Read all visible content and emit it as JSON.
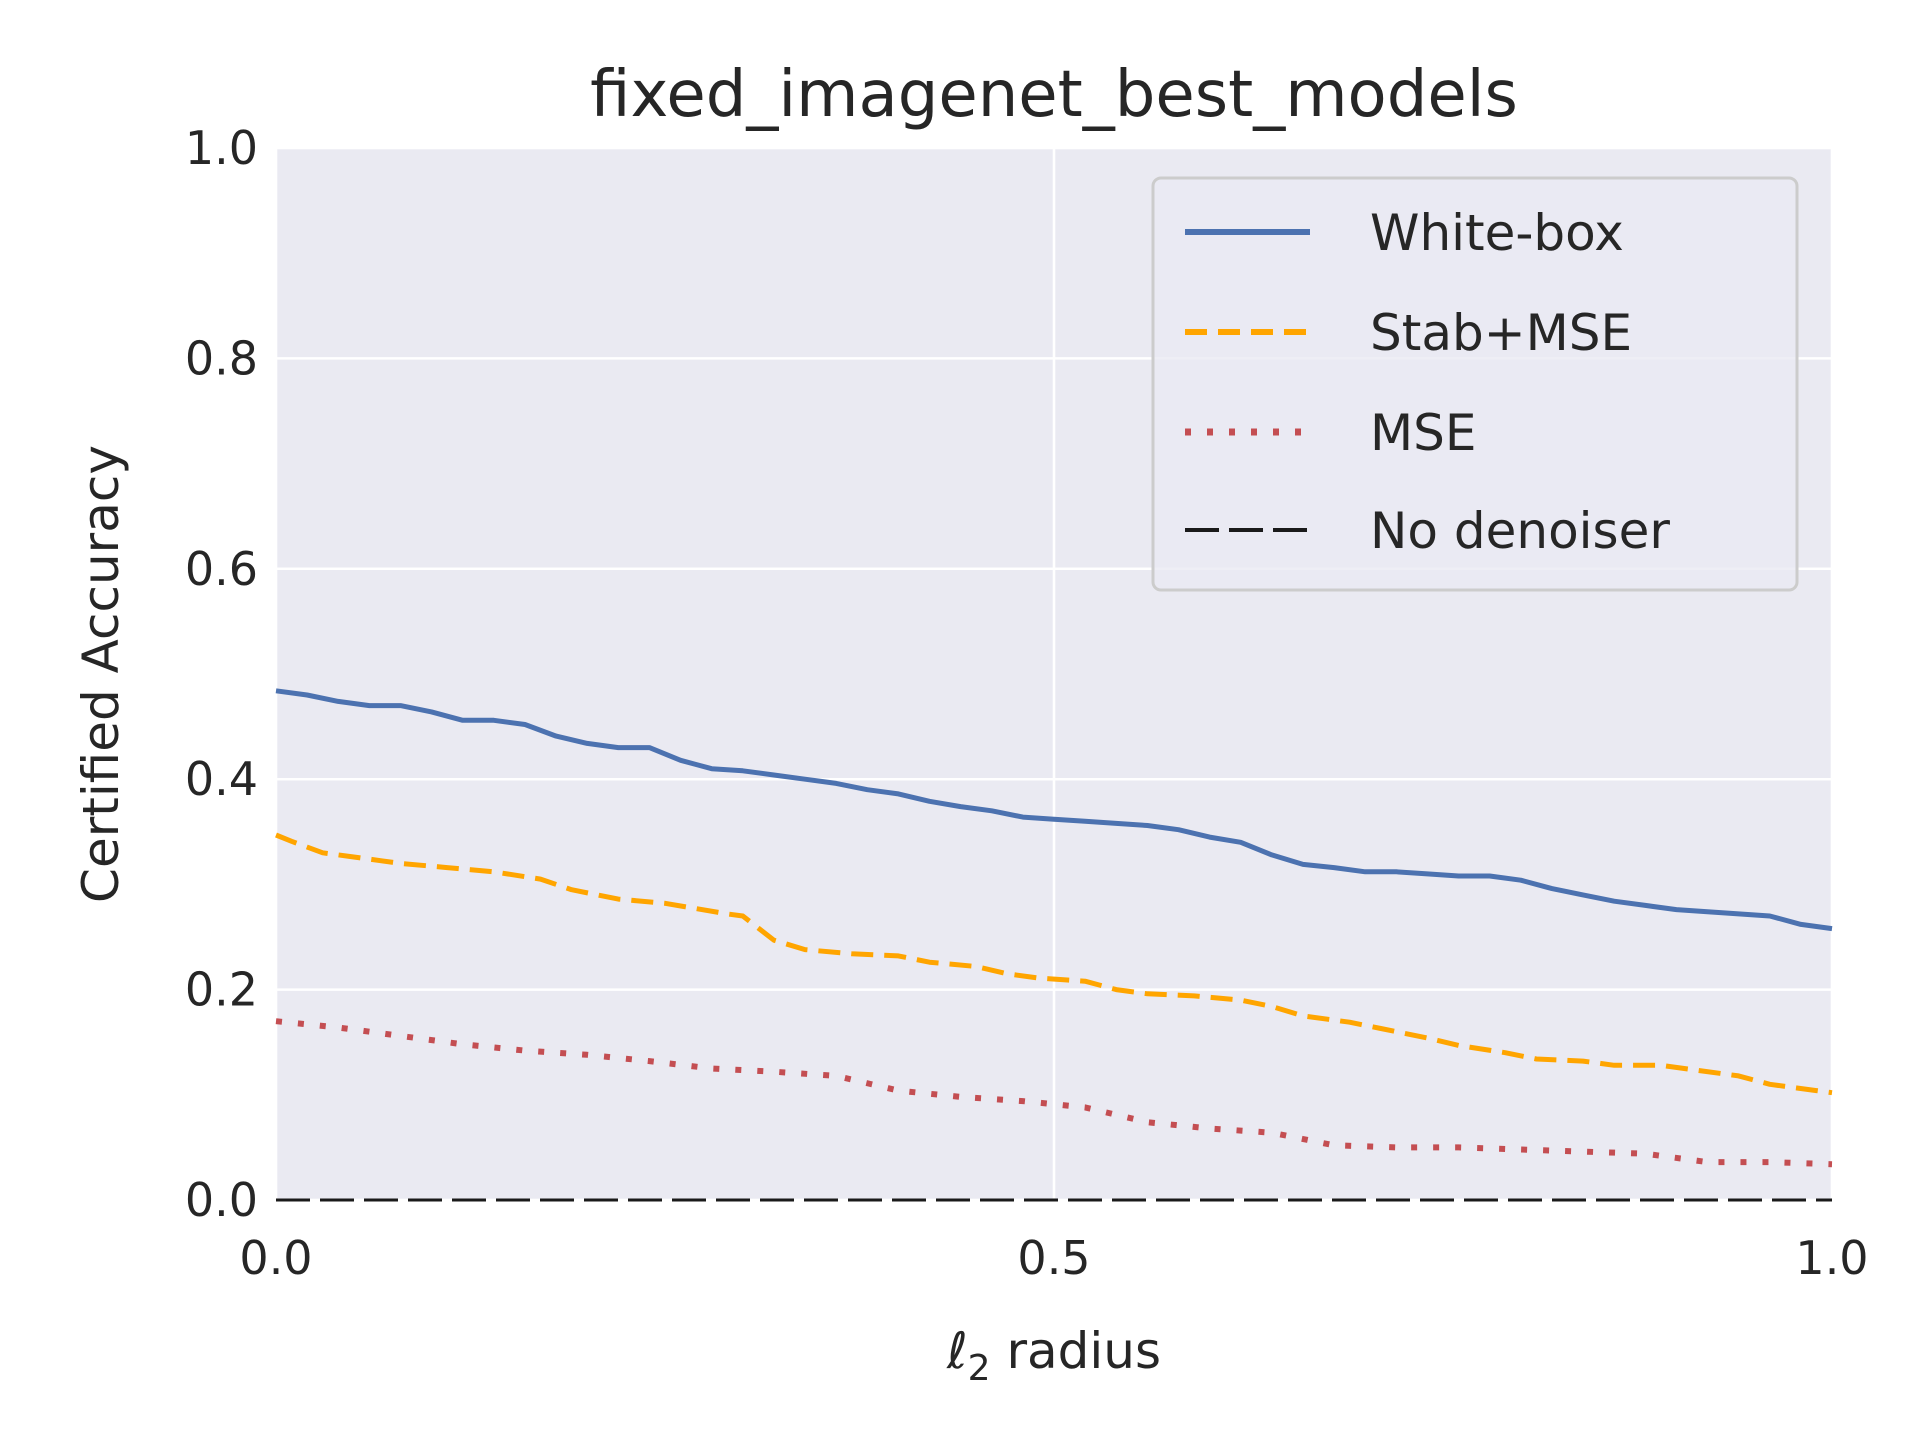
{
  "chart_data": {
    "type": "line",
    "title": "fixed_imagenet_best_models",
    "xlabel_symbol": "ℓ",
    "xlabel_subscript": "2",
    "xlabel_text": " radius",
    "ylabel": "Certified Accuracy",
    "xlim": [
      0.0,
      1.0
    ],
    "ylim": [
      0.0,
      1.0
    ],
    "xticks": [
      "0.0",
      "0.5",
      "1.0"
    ],
    "yticks": [
      "0.0",
      "0.2",
      "0.4",
      "0.6",
      "0.8",
      "1.0"
    ],
    "grid": true,
    "legend_position": "top-right",
    "series": [
      {
        "name": "White-box",
        "color": "#4c72b0",
        "style": "solid",
        "x": [
          0.0,
          0.02,
          0.04,
          0.06,
          0.08,
          0.1,
          0.12,
          0.14,
          0.16,
          0.18,
          0.2,
          0.22,
          0.24,
          0.26,
          0.27,
          0.28,
          0.3,
          0.32,
          0.34,
          0.36,
          0.38,
          0.4,
          0.42,
          0.44,
          0.46,
          0.48,
          0.5,
          0.52,
          0.54,
          0.56,
          0.58,
          0.6,
          0.62,
          0.64,
          0.66,
          0.68,
          0.7,
          0.72,
          0.74,
          0.76,
          0.78,
          0.8,
          0.82,
          0.84,
          0.86,
          0.88,
          0.9,
          0.92,
          0.94,
          0.96,
          0.98,
          1.0
        ],
        "y": [
          0.484,
          0.48,
          0.474,
          0.47,
          0.47,
          0.464,
          0.456,
          0.456,
          0.452,
          0.441,
          0.434,
          0.43,
          0.43,
          0.418,
          0.414,
          0.41,
          0.408,
          0.404,
          0.4,
          0.396,
          0.39,
          0.386,
          0.379,
          0.374,
          0.37,
          0.364,
          0.362,
          0.36,
          0.358,
          0.356,
          0.352,
          0.345,
          0.34,
          0.328,
          0.319,
          0.316,
          0.312,
          0.312,
          0.31,
          0.308,
          0.308,
          0.304,
          0.296,
          0.29,
          0.284,
          0.28,
          0.276,
          0.274,
          0.272,
          0.27,
          0.262,
          0.258
        ]
      },
      {
        "name": "Stab+MSE",
        "color": "#ffa500",
        "style": "dashed",
        "x": [
          0.0,
          0.01,
          0.03,
          0.05,
          0.08,
          0.11,
          0.14,
          0.17,
          0.19,
          0.22,
          0.25,
          0.27,
          0.29,
          0.3,
          0.32,
          0.34,
          0.37,
          0.4,
          0.42,
          0.45,
          0.47,
          0.49,
          0.52,
          0.54,
          0.56,
          0.59,
          0.62,
          0.64,
          0.66,
          0.69,
          0.71,
          0.74,
          0.76,
          0.79,
          0.81,
          0.84,
          0.86,
          0.89,
          0.91,
          0.94,
          0.96,
          0.99,
          1.0
        ],
        "y": [
          0.347,
          0.341,
          0.33,
          0.326,
          0.32,
          0.316,
          0.312,
          0.305,
          0.295,
          0.286,
          0.282,
          0.277,
          0.272,
          0.27,
          0.247,
          0.238,
          0.234,
          0.232,
          0.226,
          0.222,
          0.215,
          0.211,
          0.208,
          0.2,
          0.196,
          0.194,
          0.19,
          0.184,
          0.175,
          0.169,
          0.163,
          0.154,
          0.147,
          0.14,
          0.134,
          0.132,
          0.128,
          0.128,
          0.124,
          0.118,
          0.11,
          0.104,
          0.102
        ]
      },
      {
        "name": "MSE",
        "color": "#c44e52",
        "style": "dotted",
        "x": [
          0.0,
          0.04,
          0.08,
          0.12,
          0.16,
          0.2,
          0.24,
          0.28,
          0.32,
          0.36,
          0.4,
          0.44,
          0.48,
          0.52,
          0.56,
          0.6,
          0.64,
          0.68,
          0.72,
          0.76,
          0.8,
          0.84,
          0.88,
          0.92,
          0.96,
          1.0
        ],
        "y": [
          0.17,
          0.164,
          0.156,
          0.148,
          0.142,
          0.138,
          0.132,
          0.125,
          0.122,
          0.118,
          0.104,
          0.098,
          0.094,
          0.088,
          0.074,
          0.068,
          0.064,
          0.052,
          0.05,
          0.05,
          0.048,
          0.046,
          0.044,
          0.036,
          0.036,
          0.034
        ]
      },
      {
        "name": "No denoiser",
        "color": "#1a1a1a",
        "style": "longdash",
        "x": [
          0.0,
          1.0
        ],
        "y": [
          0.0,
          0.0
        ]
      }
    ]
  }
}
